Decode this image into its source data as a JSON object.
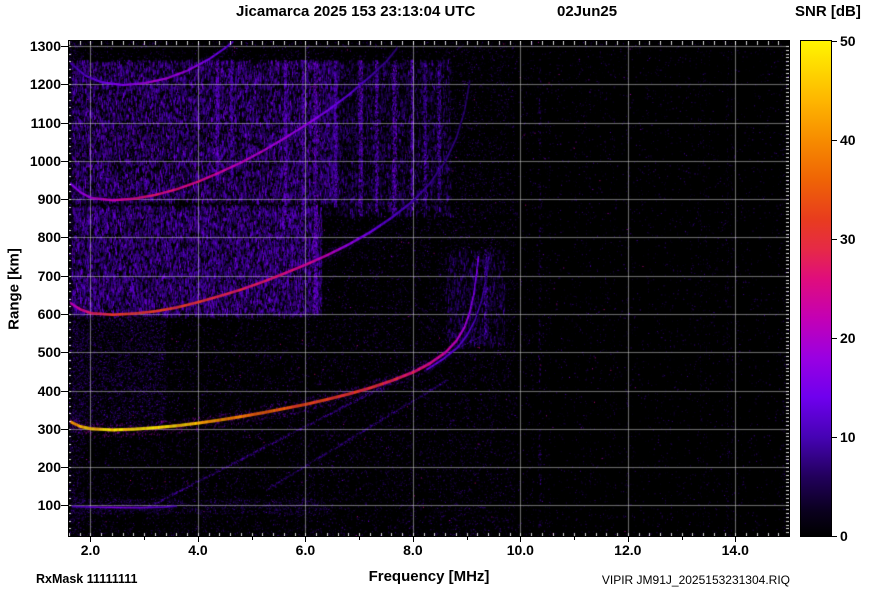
{
  "header": {
    "title": "Jicamarca 2025 153 23:13:04 UTC",
    "date": "02Jun25",
    "colorbar_label": "SNR [dB]"
  },
  "footer": {
    "rx_mask": "RxMask 11111111",
    "file_id": "VIPIR JM91J_2025153231304.RIQ"
  },
  "chart_data": {
    "type": "heatmap",
    "title": "Jicamarca 2025 153 23:13:04 UTC  02Jun25",
    "xlabel": "Frequency [MHz]",
    "ylabel": "Range [km]",
    "xlim": [
      1.6,
      15.0
    ],
    "ylim": [
      20,
      1313
    ],
    "x_ticks": [
      2.0,
      4.0,
      6.0,
      8.0,
      10.0,
      12.0,
      14.0
    ],
    "x_tick_labels": [
      "2.0",
      "4.0",
      "6.0",
      "8.0",
      "10.0",
      "12.0",
      "14.0"
    ],
    "x_minor_ticks": [
      3,
      5,
      7,
      9,
      11,
      13
    ],
    "y_ticks": [
      100,
      200,
      300,
      400,
      500,
      600,
      700,
      800,
      900,
      1000,
      1100,
      1200,
      1300
    ],
    "grid": {
      "x_step": 2,
      "y_step": 100,
      "color": "rgba(215,215,215,0.5)"
    },
    "edge_combs": {
      "x_step": 0.2,
      "y_step": 10
    },
    "colorbar": {
      "label": "SNR [dB]",
      "min": 0,
      "max": 50,
      "ticks": [
        0,
        10,
        20,
        30,
        40,
        50
      ],
      "stops": [
        [
          0.0,
          "#000000"
        ],
        [
          0.05,
          "#0a001e"
        ],
        [
          0.12,
          "#22005c"
        ],
        [
          0.2,
          "#4603b4"
        ],
        [
          0.28,
          "#6f00ee"
        ],
        [
          0.36,
          "#9a00e2"
        ],
        [
          0.44,
          "#c400b4"
        ],
        [
          0.52,
          "#e00d7c"
        ],
        [
          0.58,
          "#e62a46"
        ],
        [
          0.64,
          "#e83c1e"
        ],
        [
          0.72,
          "#ef6405"
        ],
        [
          0.8,
          "#f78c00"
        ],
        [
          0.88,
          "#feb600"
        ],
        [
          1.0,
          "#fff500"
        ]
      ]
    },
    "echo_traces": [
      {
        "name": "F-layer first hop (O-mode)",
        "width": 3,
        "fuzz": 7,
        "points": [
          [
            1.62,
            318
          ],
          [
            1.8,
            306
          ],
          [
            2.0,
            300
          ],
          [
            2.4,
            297
          ],
          [
            2.8,
            299
          ],
          [
            3.2,
            303
          ],
          [
            3.6,
            308
          ],
          [
            4.0,
            315
          ],
          [
            4.4,
            323
          ],
          [
            4.8,
            332
          ],
          [
            5.2,
            342
          ],
          [
            5.6,
            353
          ],
          [
            6.0,
            364
          ],
          [
            6.4,
            377
          ],
          [
            6.8,
            391
          ],
          [
            7.2,
            407
          ],
          [
            7.6,
            426
          ],
          [
            8.0,
            448
          ],
          [
            8.3,
            470
          ],
          [
            8.6,
            500
          ],
          [
            8.8,
            530
          ],
          [
            8.95,
            565
          ],
          [
            9.05,
            605
          ],
          [
            9.13,
            655
          ],
          [
            9.18,
            710
          ],
          [
            9.21,
            750
          ]
        ],
        "snr_profile": [
          [
            1.62,
            40
          ],
          [
            1.9,
            46
          ],
          [
            2.2,
            49
          ],
          [
            3.0,
            50
          ],
          [
            3.8,
            48
          ],
          [
            4.3,
            42
          ],
          [
            5.0,
            38
          ],
          [
            6.0,
            34
          ],
          [
            7.0,
            31
          ],
          [
            8.0,
            28
          ],
          [
            8.6,
            24
          ],
          [
            9.0,
            19
          ],
          [
            9.21,
            15
          ]
        ]
      },
      {
        "name": "F-layer first hop cusp (X-mode)",
        "width": 2,
        "fuzz": 4,
        "points": [
          [
            8.25,
            455
          ],
          [
            8.55,
            482
          ],
          [
            8.82,
            512
          ],
          [
            9.0,
            545
          ],
          [
            9.15,
            585
          ],
          [
            9.27,
            635
          ],
          [
            9.35,
            690
          ],
          [
            9.4,
            750
          ]
        ],
        "snr_profile": [
          [
            8.25,
            14
          ],
          [
            8.8,
            13
          ],
          [
            9.4,
            10
          ]
        ]
      },
      {
        "name": "second hop",
        "width": 2.6,
        "fuzz": 6,
        "points": [
          [
            1.62,
            628
          ],
          [
            1.8,
            612
          ],
          [
            2.0,
            602
          ],
          [
            2.4,
            598
          ],
          [
            2.8,
            601
          ],
          [
            3.2,
            607
          ],
          [
            3.6,
            617
          ],
          [
            4.0,
            631
          ],
          [
            4.4,
            647
          ],
          [
            4.8,
            664
          ],
          [
            5.2,
            684
          ],
          [
            5.6,
            706
          ],
          [
            6.0,
            729
          ],
          [
            6.4,
            754
          ],
          [
            6.8,
            782
          ],
          [
            7.2,
            814
          ],
          [
            7.6,
            852
          ],
          [
            8.0,
            896
          ],
          [
            8.3,
            940
          ],
          [
            8.6,
            1000
          ],
          [
            8.8,
            1060
          ],
          [
            8.95,
            1130
          ],
          [
            9.05,
            1210
          ]
        ],
        "snr_profile": [
          [
            1.62,
            22
          ],
          [
            2.0,
            28
          ],
          [
            2.5,
            32
          ],
          [
            3.5,
            33
          ],
          [
            4.5,
            30
          ],
          [
            5.5,
            27
          ],
          [
            6.2,
            24
          ],
          [
            6.8,
            18
          ],
          [
            7.5,
            12
          ],
          [
            8.2,
            9
          ],
          [
            9.05,
            7
          ]
        ]
      },
      {
        "name": "third hop",
        "width": 2.4,
        "fuzz": 6,
        "points": [
          [
            1.62,
            940
          ],
          [
            1.8,
            918
          ],
          [
            2.0,
            903
          ],
          [
            2.4,
            897
          ],
          [
            2.8,
            901
          ],
          [
            3.2,
            911
          ],
          [
            3.6,
            926
          ],
          [
            4.0,
            946
          ],
          [
            4.4,
            970
          ],
          [
            4.8,
            996
          ],
          [
            5.2,
            1026
          ],
          [
            5.6,
            1059
          ],
          [
            6.0,
            1094
          ],
          [
            6.4,
            1131
          ],
          [
            6.8,
            1173
          ],
          [
            7.2,
            1221
          ],
          [
            7.5,
            1260
          ],
          [
            7.7,
            1295
          ]
        ],
        "snr_profile": [
          [
            1.62,
            16
          ],
          [
            2.2,
            22
          ],
          [
            3.0,
            27
          ],
          [
            4.0,
            26
          ],
          [
            5.0,
            21
          ],
          [
            6.0,
            18
          ],
          [
            6.6,
            14
          ],
          [
            7.2,
            10
          ],
          [
            7.7,
            7
          ]
        ]
      },
      {
        "name": "fourth hop (partial, top of plot)",
        "width": 2.2,
        "fuzz": 5,
        "points": [
          [
            1.62,
            1255
          ],
          [
            1.9,
            1222
          ],
          [
            2.2,
            1205
          ],
          [
            2.6,
            1198
          ],
          [
            3.0,
            1203
          ],
          [
            3.4,
            1215
          ],
          [
            3.8,
            1236
          ],
          [
            4.2,
            1266
          ],
          [
            4.5,
            1295
          ],
          [
            4.65,
            1312
          ]
        ],
        "snr_profile": [
          [
            1.62,
            10
          ],
          [
            2.5,
            16
          ],
          [
            3.2,
            20
          ],
          [
            3.8,
            18
          ],
          [
            4.65,
            12
          ]
        ]
      },
      {
        "name": "E-layer echo",
        "width": 1.6,
        "fuzz": 3,
        "points": [
          [
            1.65,
            97
          ],
          [
            2.2,
            95
          ],
          [
            2.8,
            94
          ],
          [
            3.3,
            95
          ],
          [
            3.6,
            98
          ]
        ],
        "snr_profile": [
          [
            1.65,
            12
          ],
          [
            2.4,
            16
          ],
          [
            3.0,
            15
          ],
          [
            3.6,
            10
          ]
        ]
      }
    ],
    "diffuse_regions": [
      {
        "name": "spread echo above second hop",
        "f": [
          1.65,
          6.3
        ],
        "km": [
          600,
          885
        ],
        "count": 9000,
        "snr": [
          5,
          16
        ],
        "striated": true
      },
      {
        "name": "spread echo above third hop",
        "f": [
          1.65,
          6.6
        ],
        "km": [
          895,
          1265
        ],
        "count": 9500,
        "snr": [
          5,
          16
        ],
        "striated": true
      },
      {
        "name": "spread echo above first hop",
        "f": [
          1.65,
          3.4
        ],
        "km": [
          300,
          585
        ],
        "count": 2300,
        "snr": [
          4,
          13
        ],
        "striated": false
      },
      {
        "name": "E-region speckle band",
        "f": [
          1.65,
          6.5
        ],
        "km": [
          78,
          118
        ],
        "count": 1000,
        "snr": [
          4,
          12
        ],
        "striated": false
      },
      {
        "name": "striations right of clouds",
        "f": [
          6.3,
          8.7
        ],
        "km": [
          860,
          1265
        ],
        "count": 2800,
        "snr": [
          4,
          12
        ],
        "striated": true
      },
      {
        "name": "near-cusp spread",
        "f": [
          8.6,
          9.7
        ],
        "km": [
          520,
          770
        ],
        "count": 750,
        "snr": [
          4,
          11
        ],
        "striated": true
      }
    ],
    "rfi_stripes": [
      {
        "f": 4.35,
        "km": [
          950,
          1265
        ],
        "w": 3,
        "count": 450,
        "snr": 14
      },
      {
        "f": 4.62,
        "km": [
          940,
          1265
        ],
        "w": 2,
        "count": 330,
        "snr": 12
      },
      {
        "f": 5.62,
        "km": [
          860,
          1265
        ],
        "w": 3,
        "count": 480,
        "snr": 14
      },
      {
        "f": 5.95,
        "km": [
          860,
          1265
        ],
        "w": 3,
        "count": 430,
        "snr": 13
      },
      {
        "f": 6.18,
        "km": [
          600,
          1265
        ],
        "w": 4,
        "count": 780,
        "snr": 15
      },
      {
        "f": 6.55,
        "km": [
          880,
          1265
        ],
        "w": 3,
        "count": 400,
        "snr": 13
      },
      {
        "f": 7.02,
        "km": [
          860,
          1265
        ],
        "w": 4,
        "count": 560,
        "snr": 14
      },
      {
        "f": 7.32,
        "km": [
          870,
          1265
        ],
        "w": 3,
        "count": 430,
        "snr": 13
      },
      {
        "f": 7.65,
        "km": [
          860,
          1265
        ],
        "w": 4,
        "count": 560,
        "snr": 14
      },
      {
        "f": 7.98,
        "km": [
          870,
          1265
        ],
        "w": 3,
        "count": 470,
        "snr": 13
      },
      {
        "f": 8.22,
        "km": [
          890,
          1265
        ],
        "w": 3,
        "count": 400,
        "snr": 12
      },
      {
        "f": 8.48,
        "km": [
          900,
          1265
        ],
        "w": 3,
        "count": 360,
        "snr": 12
      },
      {
        "f": 9.35,
        "km": [
          540,
          770
        ],
        "w": 3,
        "count": 220,
        "snr": 11
      },
      {
        "f": 10.35,
        "km": [
          40,
          1280
        ],
        "w": 2,
        "count": 150,
        "snr": 10
      }
    ],
    "oblique_traces": [
      {
        "from": [
          3.05,
          95
        ],
        "to": [
          9.35,
          550
        ],
        "snr": 11,
        "count": 850
      },
      {
        "from": [
          5.25,
          140
        ],
        "to": [
          8.65,
          430
        ],
        "snr": 10,
        "count": 480
      }
    ],
    "noise": {
      "seed": 97531,
      "base_count": 30000,
      "left_bias": 0.62,
      "column_streaks": 150,
      "hot_pixels": 260
    }
  }
}
